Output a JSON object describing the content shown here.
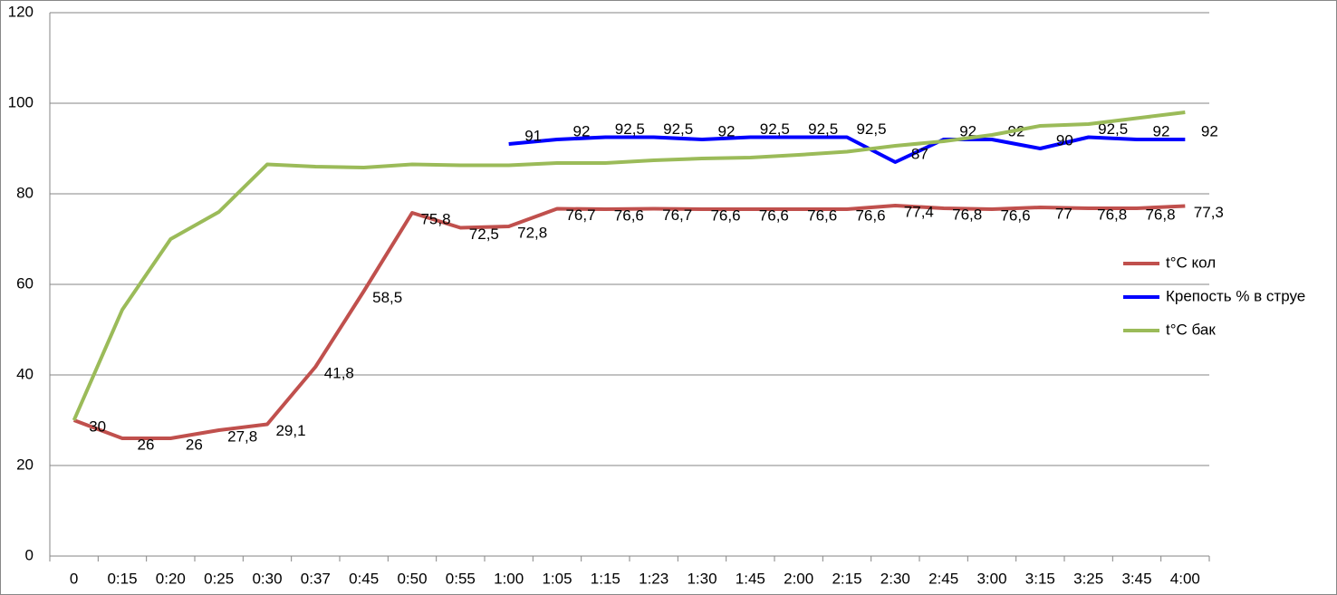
{
  "chart_data": {
    "type": "line",
    "categories": [
      "0",
      "0:15",
      "0:20",
      "0:25",
      "0:30",
      "0:37",
      "0:45",
      "0:50",
      "0:55",
      "1:00",
      "1:05",
      "1:15",
      "1:23",
      "1:30",
      "1:45",
      "2:00",
      "2:15",
      "2:30",
      "2:45",
      "3:00",
      "3:15",
      "3:25",
      "3:45",
      "4:00"
    ],
    "series": [
      {
        "name": "t°C кол",
        "color": "#c0504d",
        "values": [
          30,
          26,
          26,
          27.8,
          29.1,
          41.8,
          58.5,
          75.8,
          72.5,
          72.8,
          76.7,
          76.6,
          76.7,
          76.6,
          76.6,
          76.6,
          76.6,
          77.4,
          76.8,
          76.6,
          77,
          76.8,
          76.8,
          77.3
        ],
        "value_labels": [
          "30",
          "26",
          "26",
          "27,8",
          "29,1",
          "41,8",
          "58,5",
          "75,8",
          "72,5",
          "72,8",
          "76,7",
          "76,6",
          "76,7",
          "76,6",
          "76,6",
          "76,6",
          "76,6",
          "77,4",
          "76,8",
          "76,6",
          "77",
          "76,8",
          "76,8",
          "77,3"
        ]
      },
      {
        "name": "Крепость % в струе",
        "color": "#0000ff",
        "values": [
          null,
          null,
          null,
          null,
          null,
          null,
          null,
          null,
          null,
          91,
          92,
          92.5,
          92.5,
          92,
          92.5,
          92.5,
          92.5,
          87,
          92,
          92,
          90,
          92.5,
          92,
          92
        ],
        "value_labels": [
          null,
          null,
          null,
          null,
          null,
          null,
          null,
          null,
          null,
          "91",
          "92",
          "92,5",
          "92,5",
          "92",
          "92,5",
          "92,5",
          "92,5",
          "87",
          "92",
          "92",
          "90",
          "92,5",
          "92",
          "92"
        ]
      },
      {
        "name": "t°C бак",
        "color": "#9bbb59",
        "values": [
          30,
          54.4,
          70,
          76,
          86.5,
          86,
          85.8,
          86.5,
          86.3,
          86.3,
          86.8,
          86.8,
          87.4,
          87.8,
          88,
          88.6,
          89.3,
          90.6,
          91.6,
          93,
          95,
          95.4,
          96.7,
          98
        ]
      }
    ],
    "ylim": [
      0,
      120
    ],
    "yticks": [
      0,
      20,
      40,
      60,
      80,
      100,
      120
    ],
    "grid": true,
    "legend": "right"
  }
}
